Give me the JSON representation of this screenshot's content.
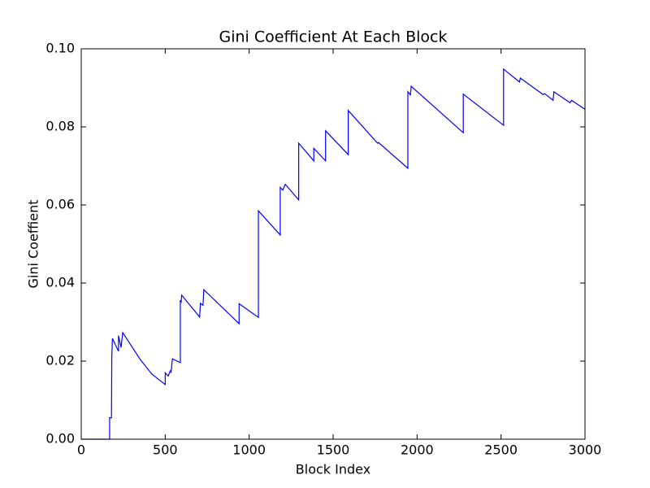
{
  "chart_data": {
    "type": "line",
    "title": "Gini Coefficient At Each Block",
    "x_label": "Block Index",
    "y_label": "Gini Coeffient",
    "xlim": [
      0,
      3000
    ],
    "ylim": [
      0,
      0.1
    ],
    "xticks": [
      0,
      500,
      1000,
      1500,
      2000,
      2500,
      3000
    ],
    "yticks": [
      {
        "value": 0,
        "label": "0.00"
      },
      {
        "value": 0.02,
        "label": "0.02"
      },
      {
        "value": 0.04,
        "label": "0.04"
      },
      {
        "value": 0.06,
        "label": "0.06"
      },
      {
        "value": 0.08,
        "label": "0.08"
      },
      {
        "value": 0.1,
        "label": "0.10"
      }
    ],
    "color": "#0000ff",
    "x": [
      0,
      169,
      169,
      180,
      182,
      186,
      222,
      222,
      237,
      247,
      350,
      420,
      500,
      500,
      518,
      530,
      535,
      543,
      590,
      590,
      595,
      598,
      705,
      710,
      725,
      730,
      940,
      940,
      1055,
      1055,
      1185,
      1185,
      1200,
      1215,
      1295,
      1295,
      1385,
      1385,
      1455,
      1455,
      1590,
      1590,
      1765,
      1770,
      1945,
      1945,
      1960,
      1965,
      2275,
      2275,
      2515,
      2515,
      2610,
      2615,
      2750,
      2760,
      2810,
      2815,
      2910,
      2920,
      3000
    ],
    "values": [
      0,
      0,
      0.0055,
      0.0055,
      0.0213,
      0.0258,
      0.0225,
      0.0265,
      0.0235,
      0.0273,
      0.0205,
      0.0167,
      0.014,
      0.017,
      0.0162,
      0.0175,
      0.0172,
      0.0206,
      0.0196,
      0.0356,
      0.0352,
      0.0369,
      0.0313,
      0.0348,
      0.0343,
      0.0383,
      0.0296,
      0.0347,
      0.0312,
      0.0585,
      0.0523,
      0.0645,
      0.0638,
      0.0653,
      0.0613,
      0.0758,
      0.0713,
      0.0745,
      0.0713,
      0.079,
      0.0729,
      0.0842,
      0.0758,
      0.076,
      0.0694,
      0.089,
      0.0882,
      0.0904,
      0.0785,
      0.0884,
      0.0804,
      0.0948,
      0.0915,
      0.0925,
      0.0883,
      0.0885,
      0.0868,
      0.089,
      0.0862,
      0.0868,
      0.0845
    ]
  }
}
